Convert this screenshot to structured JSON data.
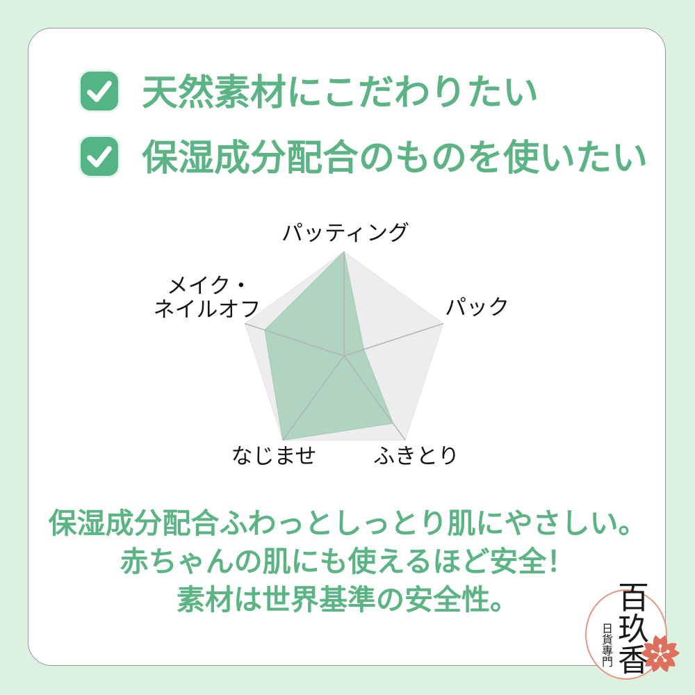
{
  "page": {
    "background": "#ddf1e3",
    "card_background": "#ffffff"
  },
  "checklist": {
    "items": [
      {
        "icon": "checkmark-icon",
        "label": "天然素材にこだわりたい"
      },
      {
        "icon": "checkmark-icon",
        "label": "保湿成分配合のものを使いたい"
      }
    ]
  },
  "chart_data": {
    "type": "radar",
    "categories": [
      "パッティング",
      "パック",
      "ふきとり",
      "なじませ",
      "メイク・ネイルオフ"
    ],
    "values": [
      1.0,
      0.2,
      0.8,
      1.0,
      0.8
    ],
    "max": 1.0,
    "title": "",
    "legend": "none",
    "grid": "pentagon-with-spokes",
    "axis_labels": {
      "top": "パッティング",
      "right": "パック",
      "bottom_right": "ふきとり",
      "bottom_left": "なじませ",
      "left_line1": "メイク・",
      "left_line2": "ネイルオフ"
    },
    "fill_color": "#aed3be",
    "grid_color": "#ededf0",
    "spoke_color": "#b0b0b3"
  },
  "summary": {
    "lines": [
      "保湿成分配合ふわっとしっとり肌にやさしい。",
      "赤ちゃんの肌にも使えるほど安全！",
      "素材は世界基準の安全性。"
    ]
  },
  "logo": {
    "name_vertical": "百玖香",
    "subtitle_vertical": "日貨專門",
    "icon": "sakura-icon",
    "circle_color": "#e59582",
    "flower_color": "#dd6f5c"
  },
  "colors": {
    "accent_green": "#5cb485",
    "checkbox_green": "#54b484",
    "label_dark": "#161616"
  }
}
